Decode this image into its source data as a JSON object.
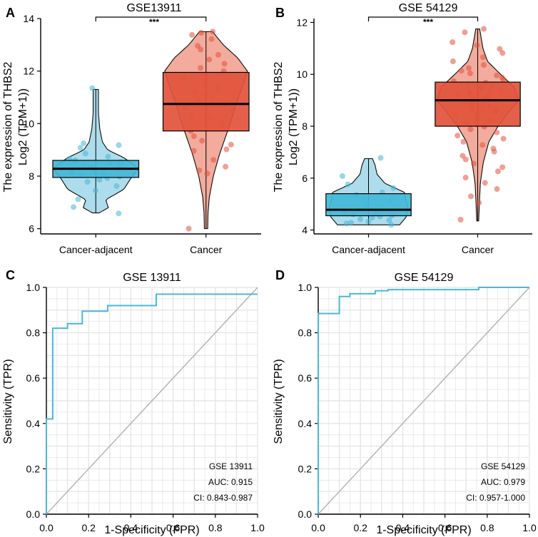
{
  "colors": {
    "adjacent_fill": "#43b7d8",
    "adjacent_light": "#a9dcec",
    "cancer_fill": "#e2523c",
    "cancer_light": "#f2a797",
    "roc_line": "#49b8db",
    "diagonal": "#b5b5b5",
    "grid": "#e6e6e6"
  },
  "chart_data": [
    {
      "id": "A",
      "label": "A",
      "type": "box-violin",
      "title": "GSE13911",
      "ylabel_line1": "The expression of THBS2",
      "ylabel_line2": "Log2 (TPM+1))",
      "categories": [
        "Cancer-adjacent",
        "Cancer"
      ],
      "ylim": [
        5.8,
        14.0
      ],
      "yticks": [
        6,
        8,
        10,
        12,
        14
      ],
      "significance": "***",
      "groups": [
        {
          "name": "Cancer-adjacent",
          "box": {
            "q1": 7.95,
            "median": 8.28,
            "q3": 8.6
          },
          "violin_range": [
            6.6,
            11.3
          ],
          "violin_width_profile": [
            [
              6.6,
              0.1
            ],
            [
              6.8,
              0.38
            ],
            [
              7.1,
              0.3
            ],
            [
              7.5,
              0.85
            ],
            [
              7.9,
              1.05
            ],
            [
              8.3,
              1.3
            ],
            [
              8.7,
              0.85
            ],
            [
              9.0,
              0.36
            ],
            [
              9.3,
              0.2
            ],
            [
              9.8,
              0.12
            ],
            [
              10.4,
              0.08
            ],
            [
              11.3,
              0.08
            ]
          ],
          "points": [
            6.58,
            6.82,
            7.12,
            7.45,
            7.62,
            7.78,
            7.86,
            7.92,
            7.98,
            8.04,
            8.1,
            8.12,
            8.18,
            8.22,
            8.26,
            8.28,
            8.31,
            8.34,
            8.38,
            8.42,
            8.48,
            8.54,
            8.6,
            8.66,
            8.74,
            8.86,
            9.08,
            9.18,
            9.25,
            11.35
          ]
        },
        {
          "name": "Cancer",
          "box": {
            "q1": 9.72,
            "median": 10.75,
            "q3": 11.95
          },
          "violin_range": [
            6.0,
            13.5
          ],
          "violin_width_profile": [
            [
              6.0,
              0.05
            ],
            [
              6.6,
              0.06
            ],
            [
              7.2,
              0.1
            ],
            [
              8.0,
              0.22
            ],
            [
              8.8,
              0.4
            ],
            [
              9.6,
              0.62
            ],
            [
              10.2,
              0.78
            ],
            [
              10.8,
              0.92
            ],
            [
              11.4,
              1.1
            ],
            [
              12.0,
              1.25
            ],
            [
              12.5,
              0.96
            ],
            [
              13.0,
              0.52
            ],
            [
              13.5,
              0.2
            ]
          ],
          "points": [
            6.0,
            8.1,
            8.22,
            8.36,
            8.62,
            8.96,
            9.02,
            9.2,
            9.35,
            9.52,
            9.72,
            9.86,
            10.02,
            10.18,
            10.34,
            10.5,
            10.62,
            10.74,
            10.86,
            10.98,
            11.1,
            11.22,
            11.36,
            11.48,
            11.62,
            11.76,
            11.88,
            12.0,
            12.12,
            12.28,
            12.44,
            12.62,
            12.82,
            12.96,
            13.22,
            13.38,
            13.46,
            13.5
          ]
        }
      ]
    },
    {
      "id": "B",
      "label": "B",
      "type": "box-violin",
      "title": "GSE 54129",
      "ylabel_line1": "The expression of THBS2",
      "ylabel_line2": "Log2 (TPM+1))",
      "categories": [
        "Cancer-adjacent",
        "Cancer"
      ],
      "ylim": [
        3.85,
        12.15
      ],
      "yticks": [
        4,
        6,
        8,
        10,
        12
      ],
      "significance": "***",
      "groups": [
        {
          "name": "Cancer-adjacent",
          "box": {
            "q1": 4.55,
            "median": 4.78,
            "q3": 5.4
          },
          "violin_range": [
            4.2,
            6.75
          ],
          "violin_width_profile": [
            [
              4.2,
              0.95
            ],
            [
              4.5,
              1.15
            ],
            [
              4.9,
              1.2
            ],
            [
              5.2,
              1.12
            ],
            [
              5.45,
              1.1
            ],
            [
              5.8,
              0.5
            ],
            [
              6.15,
              0.26
            ],
            [
              6.5,
              0.2
            ],
            [
              6.75,
              0.12
            ]
          ],
          "points": [
            4.2,
            4.25,
            4.28,
            4.33,
            4.38,
            4.42,
            4.48,
            4.52,
            4.56,
            4.6,
            4.65,
            4.7,
            4.76,
            4.82,
            4.9,
            5.0,
            5.1,
            5.18,
            5.28,
            5.36,
            5.45,
            5.62,
            5.76,
            6.08,
            6.78
          ]
        },
        {
          "name": "Cancer",
          "box": {
            "q1": 8.0,
            "median": 9.0,
            "q3": 9.7
          },
          "violin_range": [
            4.35,
            11.75
          ],
          "violin_width_profile": [
            [
              4.35,
              0.03
            ],
            [
              5.0,
              0.05
            ],
            [
              5.8,
              0.08
            ],
            [
              6.6,
              0.17
            ],
            [
              7.4,
              0.34
            ],
            [
              8.0,
              0.62
            ],
            [
              8.6,
              0.98
            ],
            [
              9.0,
              1.25
            ],
            [
              9.5,
              1.12
            ],
            [
              10.0,
              0.7
            ],
            [
              10.5,
              0.3
            ],
            [
              11.0,
              0.16
            ],
            [
              11.75,
              0.06
            ]
          ],
          "points": [
            4.4,
            5.05,
            5.3,
            5.58,
            5.82,
            6.02,
            6.26,
            6.42,
            6.56,
            6.72,
            6.86,
            7.02,
            7.14,
            7.28,
            7.4,
            7.52,
            7.64,
            7.76,
            7.88,
            7.98,
            8.06,
            8.14,
            8.22,
            8.3,
            8.36,
            8.42,
            8.48,
            8.54,
            8.6,
            8.65,
            8.7,
            8.75,
            8.8,
            8.85,
            8.9,
            8.94,
            8.98,
            9.02,
            9.06,
            9.1,
            9.14,
            9.18,
            9.22,
            9.26,
            9.3,
            9.35,
            9.4,
            9.45,
            9.5,
            9.56,
            9.62,
            9.68,
            9.74,
            9.8,
            9.88,
            9.96,
            10.04,
            10.14,
            10.24,
            10.36,
            10.5,
            10.66,
            10.82,
            10.98,
            11.12,
            11.24,
            11.62,
            11.75
          ]
        }
      ]
    },
    {
      "id": "C",
      "label": "C",
      "type": "line",
      "title": "GSE 13911",
      "xlabel": "1-Specificity (FPR)",
      "ylabel": "Sensitivity (TPR)",
      "xlim": [
        0,
        1
      ],
      "ylim": [
        0,
        1
      ],
      "ticks": [
        "0.0",
        "0.2",
        "0.4",
        "0.6",
        "0.8",
        "1.0"
      ],
      "tick_values": [
        0,
        0.2,
        0.4,
        0.6,
        0.8,
        1.0
      ],
      "grid": true,
      "legend_lines": [
        "GSE 13911",
        "AUC: 0.915",
        "CI: 0.843-0.987"
      ],
      "roc": [
        [
          0.0,
          0.0
        ],
        [
          0.0,
          0.42
        ],
        [
          0.03,
          0.42
        ],
        [
          0.03,
          0.82
        ],
        [
          0.1,
          0.82
        ],
        [
          0.1,
          0.84
        ],
        [
          0.17,
          0.84
        ],
        [
          0.17,
          0.895
        ],
        [
          0.29,
          0.895
        ],
        [
          0.29,
          0.92
        ],
        [
          0.52,
          0.92
        ],
        [
          0.52,
          0.97
        ],
        [
          1.0,
          0.97
        ]
      ],
      "diagonal": [
        [
          0,
          0
        ],
        [
          1,
          1
        ]
      ]
    },
    {
      "id": "D",
      "label": "D",
      "type": "line",
      "title": "GSE 54129",
      "xlabel": "1-Specificity (FPR)",
      "ylabel": "Sensitivity (TPR)",
      "xlim": [
        0,
        1
      ],
      "ylim": [
        0,
        1
      ],
      "ticks": [
        "0.0",
        "0.2",
        "0.4",
        "0.6",
        "0.8",
        "1.0"
      ],
      "tick_values": [
        0,
        0.2,
        0.4,
        0.6,
        0.8,
        1.0
      ],
      "grid": true,
      "legend_lines": [
        "GSE 54129",
        "AUC: 0.979",
        "CI: 0.957-1.000"
      ],
      "roc": [
        [
          0.0,
          0.0
        ],
        [
          0.0,
          0.885
        ],
        [
          0.1,
          0.885
        ],
        [
          0.1,
          0.96
        ],
        [
          0.15,
          0.96
        ],
        [
          0.15,
          0.972
        ],
        [
          0.27,
          0.972
        ],
        [
          0.27,
          0.985
        ],
        [
          0.33,
          0.985
        ],
        [
          0.33,
          0.99
        ],
        [
          0.76,
          0.99
        ],
        [
          0.76,
          1.0
        ],
        [
          1.0,
          1.0
        ]
      ],
      "diagonal": [
        [
          0,
          0
        ],
        [
          1,
          1
        ]
      ]
    }
  ]
}
